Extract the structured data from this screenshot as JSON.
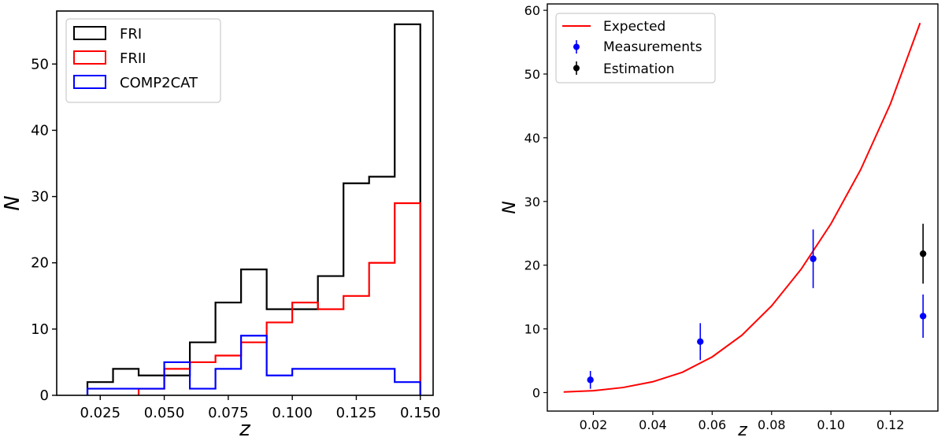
{
  "chart_data": [
    {
      "type": "histogram",
      "title": "",
      "xlabel": "z",
      "ylabel": "N",
      "xlim": [
        0.008,
        0.155
      ],
      "ylim": [
        0,
        58
      ],
      "xticks": [
        0.025,
        0.05,
        0.075,
        0.1,
        0.125,
        0.15
      ],
      "xtick_labels": [
        "0.025",
        "0.050",
        "0.075",
        "0.100",
        "0.125",
        "0.150"
      ],
      "yticks": [
        0,
        10,
        20,
        30,
        40,
        50
      ],
      "ytick_labels": [
        "0",
        "10",
        "20",
        "30",
        "40",
        "50"
      ],
      "legend_position": "top-left",
      "series": [
        {
          "name": "FRI",
          "color": "#000000",
          "edges": [
            0.02,
            0.03,
            0.04,
            0.05,
            0.06,
            0.07,
            0.08,
            0.09,
            0.1,
            0.11,
            0.12,
            0.13,
            0.14,
            0.15
          ],
          "counts": [
            2,
            4,
            3,
            3,
            8,
            14,
            19,
            13,
            13,
            18,
            32,
            33,
            56
          ]
        },
        {
          "name": "FRII",
          "color": "#ff0000",
          "edges": [
            0.04,
            0.05,
            0.06,
            0.07,
            0.08,
            0.09,
            0.1,
            0.11,
            0.12,
            0.13,
            0.14,
            0.15
          ],
          "counts": [
            1,
            4,
            5,
            6,
            8,
            11,
            14,
            13,
            15,
            20,
            29
          ]
        },
        {
          "name": "COMP2CAT",
          "color": "#0000ff",
          "edges": [
            0.02,
            0.03,
            0.04,
            0.05,
            0.06,
            0.07,
            0.08,
            0.09,
            0.1,
            0.11,
            0.12,
            0.13,
            0.14,
            0.15
          ],
          "counts": [
            1,
            1,
            1,
            5,
            1,
            4,
            9,
            3,
            4,
            4,
            4,
            4,
            2
          ]
        }
      ]
    },
    {
      "type": "line",
      "title": "",
      "xlabel": "z",
      "ylabel": "N",
      "xlim": [
        0.0045,
        0.136
      ],
      "ylim": [
        -2.9,
        61
      ],
      "xticks": [
        0.02,
        0.04,
        0.06,
        0.08,
        0.1,
        0.12
      ],
      "xtick_labels": [
        "0.02",
        "0.04",
        "0.06",
        "0.08",
        "0.10",
        "0.12"
      ],
      "yticks": [
        0,
        10,
        20,
        30,
        40,
        50,
        60
      ],
      "ytick_labels": [
        "0",
        "10",
        "20",
        "30",
        "40",
        "50",
        "60"
      ],
      "legend_position": "top-left",
      "series": [
        {
          "name": "Expected",
          "kind": "line",
          "color": "#ff0000",
          "x": [
            0.01,
            0.02,
            0.03,
            0.04,
            0.05,
            0.06,
            0.07,
            0.08,
            0.09,
            0.1,
            0.11,
            0.12,
            0.13
          ],
          "y": [
            0.1,
            0.3,
            0.8,
            1.7,
            3.2,
            5.6,
            9.0,
            13.6,
            19.4,
            26.5,
            35.0,
            45.3,
            58.0
          ]
        },
        {
          "name": "Measurements",
          "kind": "errorbar",
          "color": "#0000ff",
          "x": [
            0.019,
            0.056,
            0.094,
            0.131
          ],
          "y": [
            2.0,
            8.0,
            21.0,
            12.0
          ],
          "yerr": [
            1.4,
            2.9,
            4.6,
            3.4
          ]
        },
        {
          "name": "Estimation",
          "kind": "errorbar",
          "color": "#000000",
          "x": [
            0.131
          ],
          "y": [
            21.8
          ],
          "yerr": [
            4.7
          ]
        }
      ]
    }
  ]
}
